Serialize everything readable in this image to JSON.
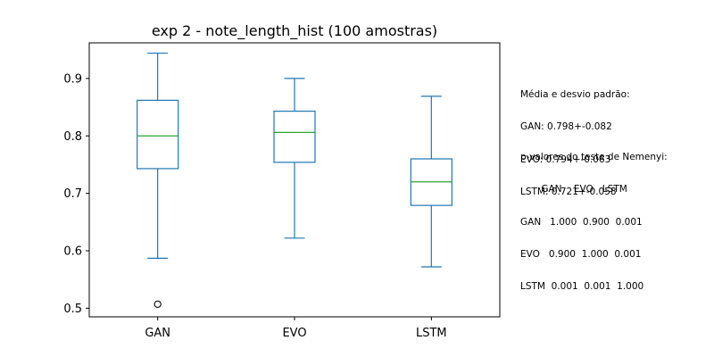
{
  "chart_data": {
    "type": "box",
    "title": "exp 2 - note_length_hist (100 amostras)",
    "xlabel": "",
    "ylabel": "",
    "ylim": [
      0.485,
      0.962
    ],
    "yticks": [
      0.5,
      0.6,
      0.7,
      0.8,
      0.9
    ],
    "ytick_labels": [
      "0.5",
      "0.6",
      "0.7",
      "0.8",
      "0.9"
    ],
    "categories": [
      "GAN",
      "EVO",
      "LSTM"
    ],
    "boxes": [
      {
        "name": "GAN",
        "whisker_low": 0.587,
        "q1": 0.743,
        "median": 0.8,
        "q3": 0.862,
        "whisker_high": 0.944,
        "outliers": [
          0.507
        ]
      },
      {
        "name": "EVO",
        "whisker_low": 0.622,
        "q1": 0.754,
        "median": 0.806,
        "q3": 0.843,
        "whisker_high": 0.9,
        "outliers": []
      },
      {
        "name": "LSTM",
        "whisker_low": 0.572,
        "q1": 0.679,
        "median": 0.72,
        "q3": 0.76,
        "whisker_high": 0.869,
        "outliers": []
      }
    ],
    "box_color": "#1f77b4",
    "median_color": "#2ca02c",
    "grid": false,
    "legend": "none"
  },
  "annotations": {
    "stats": [
      "Média e desvio padrão:",
      "GAN: 0.798+-0.082",
      "EVO: 0.794+-0.063",
      "LSTM: 0.721+-0.058"
    ],
    "nemenyi": [
      "p-valores do teste de Nemenyi:",
      "       GAN    EVO   LSTM",
      "GAN   1.000  0.900  0.001",
      "EVO   0.900  1.000  0.001",
      "LSTM  0.001  0.001  1.000"
    ]
  }
}
